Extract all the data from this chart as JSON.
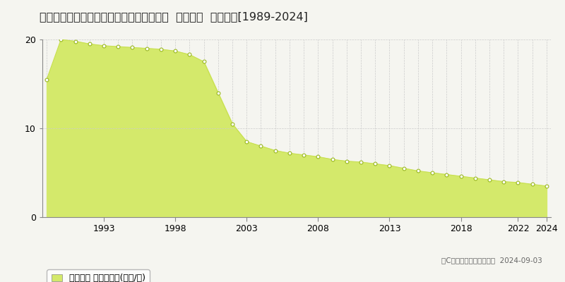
{
  "title": "愛知県知多郡南知多町大字豊丘字仲島５番  地価公示  地価推移[1989-2024]",
  "years": [
    1989,
    1990,
    1991,
    1992,
    1993,
    1994,
    1995,
    1996,
    1997,
    1998,
    1999,
    2000,
    2001,
    2002,
    2003,
    2004,
    2005,
    2006,
    2007,
    2008,
    2009,
    2010,
    2011,
    2012,
    2013,
    2014,
    2015,
    2016,
    2017,
    2018,
    2019,
    2020,
    2021,
    2022,
    2023,
    2024
  ],
  "values": [
    15.5,
    20.0,
    19.8,
    19.5,
    19.3,
    19.2,
    19.1,
    19.0,
    18.9,
    18.7,
    18.3,
    17.5,
    14.0,
    10.5,
    8.5,
    8.0,
    7.5,
    7.2,
    7.0,
    6.8,
    6.5,
    6.3,
    6.2,
    6.0,
    5.8,
    5.5,
    5.2,
    5.0,
    4.8,
    4.6,
    4.4,
    4.2,
    4.0,
    3.9,
    3.7,
    3.5
  ],
  "fill_color": "#d4e96b",
  "line_color": "#c8e050",
  "marker_facecolor": "#ffffff",
  "marker_edgecolor": "#9ab820",
  "background_color": "#f5f5f0",
  "plot_bg_color": "#f5f5f0",
  "grid_color": "#cccccc",
  "ylim": [
    0,
    20
  ],
  "yticks": [
    0,
    10,
    20
  ],
  "xtick_major": [
    1993,
    1998,
    2003,
    2008,
    2013,
    2018,
    2022,
    2024
  ],
  "legend_label": "地価公示 平均坪単価(万円/坪)",
  "copyright_text": "（C）土地価格ドットコム  2024-09-03",
  "title_fontsize": 11.5,
  "tick_fontsize": 9,
  "legend_fontsize": 9
}
